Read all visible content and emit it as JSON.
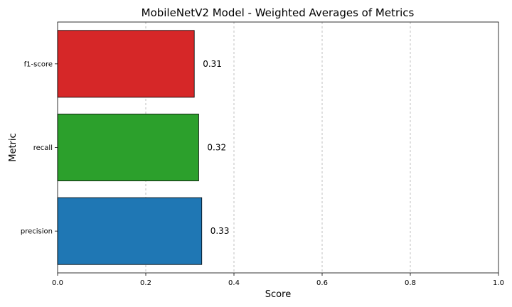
{
  "chart_data": {
    "type": "bar",
    "orientation": "horizontal",
    "title": "MobileNetV2 Model - Weighted Averages of Metrics",
    "xlabel": "Score",
    "ylabel": "Metric",
    "xlim": [
      0,
      1
    ],
    "xticks": [
      0.0,
      0.2,
      0.4,
      0.6,
      0.8,
      1.0
    ],
    "xtick_labels": [
      "0.0",
      "0.2",
      "0.4",
      "0.6",
      "0.8",
      "1.0"
    ],
    "grid": "x-dashed",
    "categories": [
      "precision",
      "recall",
      "f1-score"
    ],
    "values": [
      0.327,
      0.32,
      0.31
    ],
    "value_labels": [
      "0.33",
      "0.32",
      "0.31"
    ],
    "colors": [
      "#1f77b4",
      "#2ca02c",
      "#d62728"
    ]
  }
}
